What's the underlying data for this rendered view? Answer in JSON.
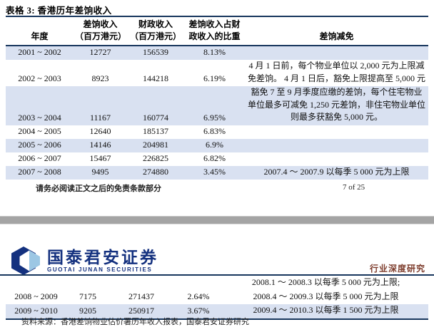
{
  "page": {
    "table_title": "表格 3: 香港历年差饷收入",
    "footer_disclaimer": "请务必阅读正文之后的免责条款部分",
    "page_number": "7 of 25",
    "source_note": "资料来源：香港差饷物业估价署历年收入报表，国泰君安证券研究"
  },
  "brand": {
    "name_cn": "国泰君安证券",
    "name_en": "GUOTAI JUNAN SECURITIES",
    "report_type": "行业深度研究",
    "color_dark_blue": "#14317f",
    "color_light_blue": "#9cc7e4"
  },
  "colors": {
    "row_shade": "#d9e1f1",
    "rule_dark": "#17365d",
    "report_type_text": "#7d3c2c"
  },
  "table1": {
    "headers": [
      {
        "l1": "",
        "l2": "年度"
      },
      {
        "l1": "差饷收入",
        "l2": "（百万港元）"
      },
      {
        "l1": "财政收入",
        "l2": "（百万港元）"
      },
      {
        "l1": "差饷收入占财",
        "l2": "政收入的比重"
      },
      {
        "l1": "",
        "l2": "差饷减免"
      }
    ],
    "rows": [
      {
        "year": "2001 ~ 2002",
        "rates": "12727",
        "fiscal": "156539",
        "ratio": "8.13%",
        "remark": "",
        "shade": true,
        "h": 19
      },
      {
        "year": "2002 ~ 2003",
        "rates": "8923",
        "fiscal": "144218",
        "ratio": "6.19%",
        "remark": "4 月 1 日前，每个物业单位以 2,000 元为上限减免差饷。 4 月 1 日后，豁免上限提高至 5,000 元",
        "shade": false,
        "h": 37
      },
      {
        "year": "2003 ~ 2004",
        "rates": "11167",
        "fiscal": "160774",
        "ratio": "6.95%",
        "remark": "豁免 7 至 9 月季度应缴的差饷，每个住宅物业单位最多可减免 1,250 元差饷，非住宅物业单位则最多获豁免 5,000 元。",
        "shade": true,
        "h": 52
      },
      {
        "year": "2004 ~ 2005",
        "rates": "12640",
        "fiscal": "185137",
        "ratio": "6.83%",
        "remark": "",
        "shade": false,
        "h": 19
      },
      {
        "year": "2005 ~ 2006",
        "rates": "14146",
        "fiscal": "204981",
        "ratio": "6.9%",
        "remark": "",
        "shade": true,
        "h": 19
      },
      {
        "year": "2006 ~ 2007",
        "rates": "15467",
        "fiscal": "226825",
        "ratio": "6.82%",
        "remark": "",
        "shade": false,
        "h": 19
      },
      {
        "year": "2007 ~ 2008",
        "rates": "9495",
        "fiscal": "274880",
        "ratio": "3.45%",
        "remark": "2007.4 ～ 2007.9 以每季 5 000 元为上限",
        "shade": true,
        "h": 19
      }
    ]
  },
  "table2": {
    "rows": [
      {
        "year": "",
        "rates": "",
        "fiscal": "",
        "ratio": "",
        "remark": "2008.1 ～ 2008.3 以每季 5 000 元为上限;",
        "shade": false,
        "h": 16
      },
      {
        "year": "2008 ~ 2009",
        "rates": "7175",
        "fiscal": "271437",
        "ratio": "2.64%",
        "remark": "2008.4 ～ 2009.3 以每季 5 000 元为上限",
        "shade": false,
        "h": 19
      },
      {
        "year": "2009 ~ 2010",
        "rates": "9205",
        "fiscal": "250917",
        "ratio": "3.67%",
        "remark": "2009.4 ～ 2010.3 以每季 1 500 元为上限",
        "shade": true,
        "h": 19
      }
    ]
  }
}
